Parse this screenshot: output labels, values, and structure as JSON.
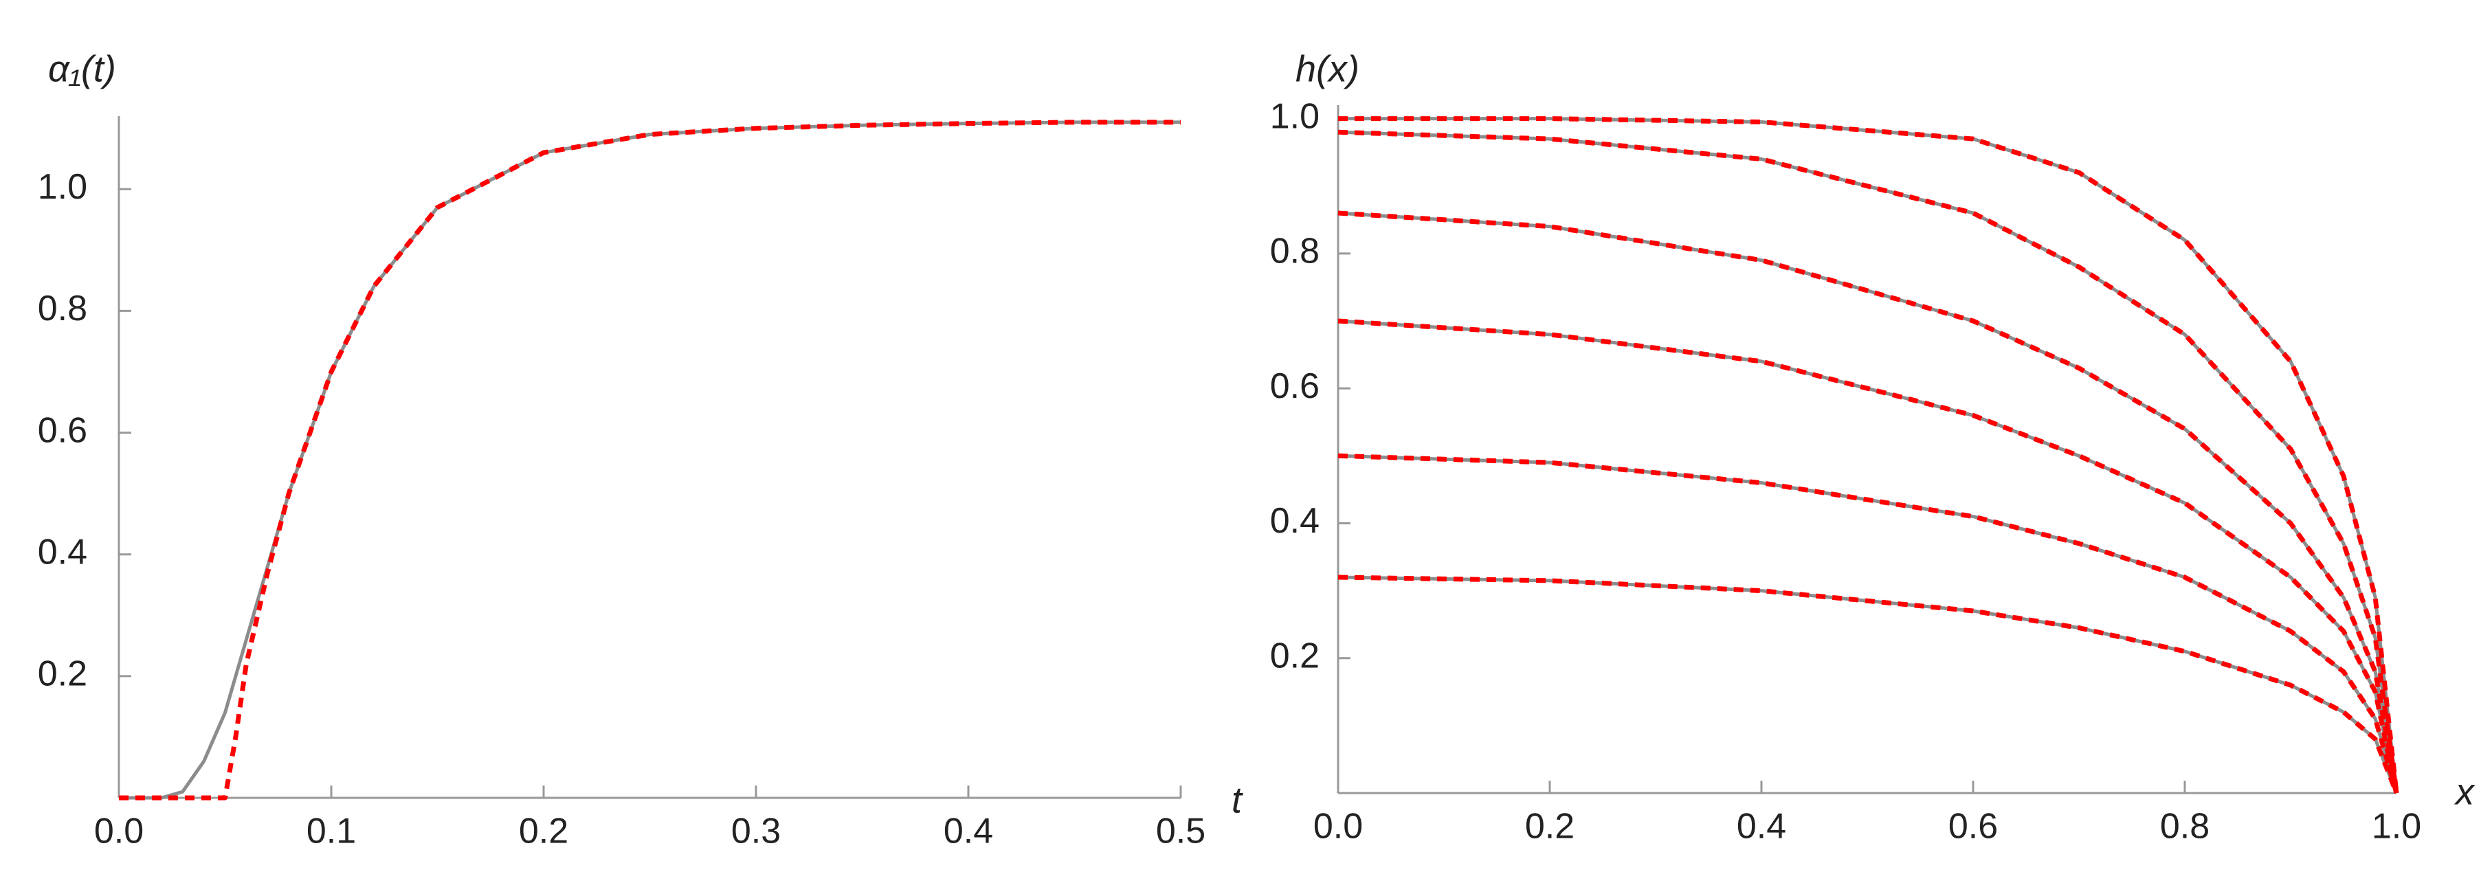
{
  "chart_data": [
    {
      "type": "line",
      "y_label": "α₁(t)",
      "x_label": "t",
      "xlim": [
        0,
        0.5
      ],
      "ylim": [
        0,
        1.12
      ],
      "xticks": [
        {
          "value": 0,
          "label": "0.0"
        },
        0.1,
        0.2,
        0.3,
        0.4,
        0.5
      ],
      "yticks": [
        0.2,
        0.4,
        0.6,
        0.8,
        {
          "value": 1,
          "label": "1.0"
        }
      ],
      "x": [
        0,
        0.02,
        0.03,
        0.04,
        0.05,
        0.055,
        0.06,
        0.07,
        0.08,
        0.1,
        0.12,
        0.15,
        0.2,
        0.25,
        0.3,
        0.35,
        0.4,
        0.45,
        0.5
      ],
      "series": [
        {
          "color": "#8c8c8c",
          "style": "solid",
          "values": [
            0,
            0,
            0.01,
            0.06,
            0.14,
            0.2,
            0.26,
            0.38,
            0.5,
            0.7,
            0.84,
            0.97,
            1.06,
            1.09,
            1.1,
            1.105,
            1.108,
            1.11,
            1.11
          ]
        },
        {
          "color": "#ff0000",
          "style": "dashed",
          "values": [
            0,
            0,
            0,
            0,
            0,
            0.1,
            0.22,
            0.37,
            0.5,
            0.7,
            0.84,
            0.97,
            1.06,
            1.09,
            1.1,
            1.105,
            1.108,
            1.11,
            1.11
          ]
        }
      ]
    },
    {
      "type": "line",
      "y_label": "h(x)",
      "x_label": "x",
      "xlim": [
        0,
        1
      ],
      "ylim": [
        0,
        1.02
      ],
      "xticks": [
        {
          "value": 0,
          "label": "0.0"
        },
        0.2,
        0.4,
        0.6,
        0.8,
        {
          "value": 1,
          "label": "1.0"
        }
      ],
      "yticks": [
        0.2,
        0.4,
        0.6,
        0.8,
        {
          "value": 1,
          "label": "1.0"
        }
      ],
      "x": [
        0,
        0.2,
        0.4,
        0.6,
        0.7,
        0.8,
        0.9,
        0.95,
        0.98,
        1
      ],
      "series": [
        {
          "color": "#8c8c8c",
          "style": "solid",
          "values": [
            0.32,
            0.315,
            0.3,
            0.27,
            0.245,
            0.21,
            0.16,
            0.12,
            0.08,
            0
          ]
        },
        {
          "color": "#8c8c8c",
          "style": "solid",
          "values": [
            0.5,
            0.49,
            0.46,
            0.41,
            0.37,
            0.32,
            0.24,
            0.18,
            0.11,
            0
          ]
        },
        {
          "color": "#8c8c8c",
          "style": "solid",
          "values": [
            0.7,
            0.68,
            0.64,
            0.56,
            0.5,
            0.43,
            0.32,
            0.24,
            0.15,
            0
          ]
        },
        {
          "color": "#8c8c8c",
          "style": "solid",
          "values": [
            0.86,
            0.84,
            0.79,
            0.7,
            0.63,
            0.54,
            0.4,
            0.29,
            0.18,
            0
          ]
        },
        {
          "color": "#8c8c8c",
          "style": "solid",
          "values": [
            0.98,
            0.97,
            0.94,
            0.86,
            0.78,
            0.68,
            0.51,
            0.37,
            0.23,
            0
          ]
        },
        {
          "color": "#8c8c8c",
          "style": "solid",
          "values": [
            1,
            1,
            0.995,
            0.97,
            0.92,
            0.82,
            0.64,
            0.47,
            0.29,
            0
          ]
        },
        {
          "color": "#ff0000",
          "style": "dashed",
          "values": [
            0.32,
            0.315,
            0.3,
            0.27,
            0.245,
            0.21,
            0.16,
            0.12,
            0.08,
            0
          ]
        },
        {
          "color": "#ff0000",
          "style": "dashed",
          "values": [
            0.5,
            0.49,
            0.46,
            0.41,
            0.37,
            0.32,
            0.24,
            0.18,
            0.11,
            0
          ]
        },
        {
          "color": "#ff0000",
          "style": "dashed",
          "values": [
            0.7,
            0.68,
            0.64,
            0.56,
            0.5,
            0.43,
            0.32,
            0.24,
            0.15,
            0
          ]
        },
        {
          "color": "#ff0000",
          "style": "dashed",
          "values": [
            0.86,
            0.84,
            0.79,
            0.7,
            0.63,
            0.54,
            0.4,
            0.29,
            0.18,
            0
          ]
        },
        {
          "color": "#ff0000",
          "style": "dashed",
          "values": [
            0.98,
            0.97,
            0.94,
            0.86,
            0.78,
            0.68,
            0.51,
            0.37,
            0.23,
            0
          ]
        },
        {
          "color": "#ff0000",
          "style": "dashed",
          "values": [
            1,
            1,
            0.995,
            0.97,
            0.92,
            0.82,
            0.64,
            0.47,
            0.29,
            0
          ]
        }
      ]
    }
  ]
}
